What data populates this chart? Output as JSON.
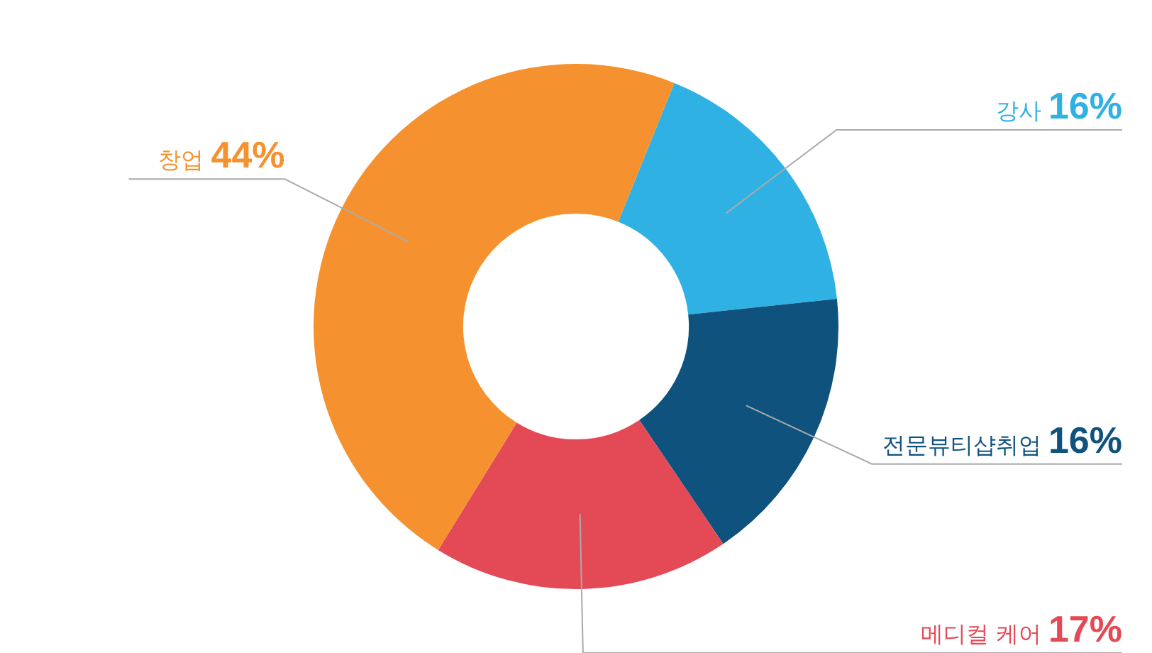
{
  "chart_data": {
    "type": "donut",
    "categories": [
      "강사",
      "전문뷰티샵취업",
      "메디컬 케어",
      "창업"
    ],
    "values": [
      16,
      16,
      17,
      44
    ],
    "value_labels": [
      "16%",
      "16%",
      "17%",
      "44%"
    ],
    "colors": [
      "#2fb1e3",
      "#0f527e",
      "#e44a56",
      "#f5922f"
    ],
    "legend": false
  }
}
